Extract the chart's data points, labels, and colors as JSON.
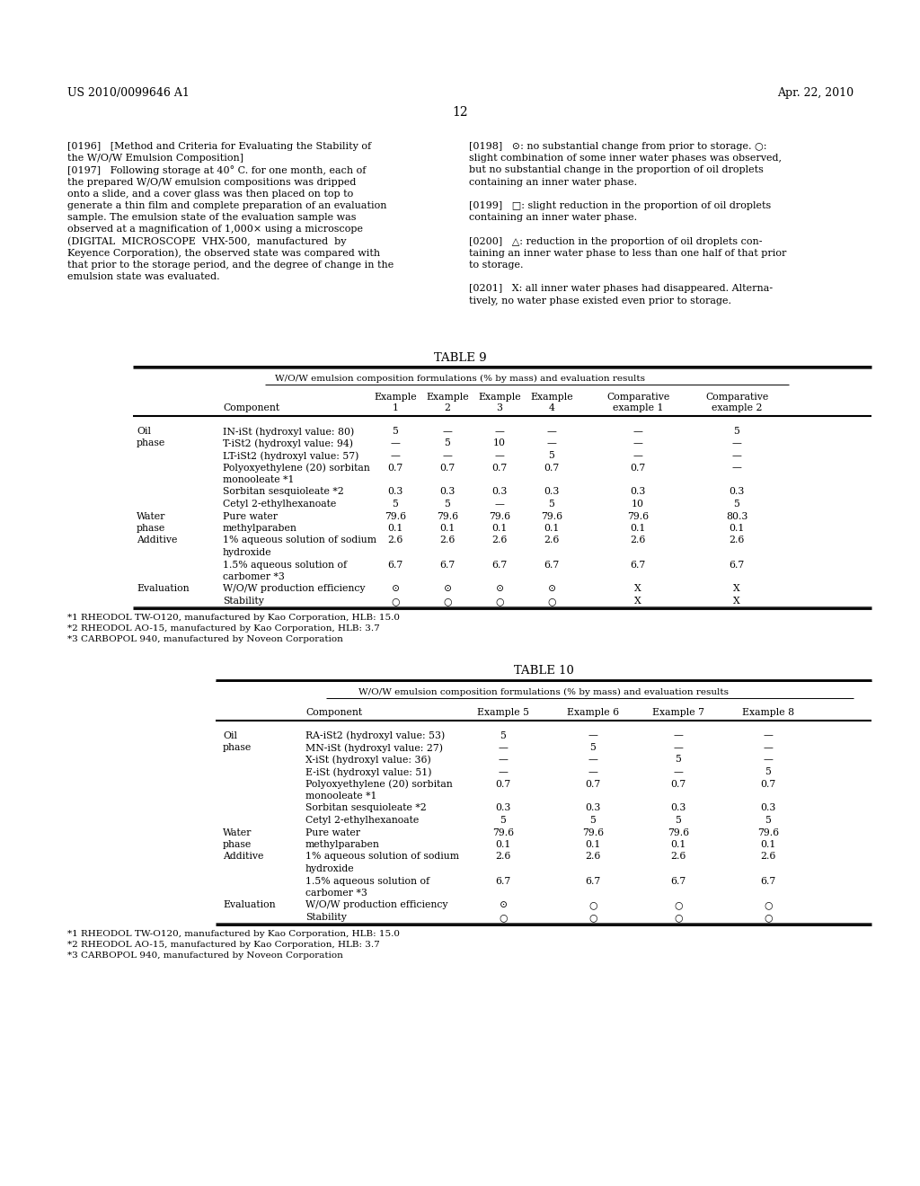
{
  "bg_color": "#ffffff",
  "header_left": "US 2010/0099646 A1",
  "header_right": "Apr. 22, 2010",
  "page_number": "12",
  "left_col_lines": [
    "[0196]   [Method and Criteria for Evaluating the Stability of",
    "the W/O/W Emulsion Composition]",
    "[0197]   Following storage at 40° C. for one month, each of",
    "the prepared W/O/W emulsion compositions was dripped",
    "onto a slide, and a cover glass was then placed on top to",
    "generate a thin film and complete preparation of an evaluation",
    "sample. The emulsion state of the evaluation sample was",
    "observed at a magnification of 1,000× using a microscope",
    "(DIGITAL  MICROSCOPE  VHX-500,  manufactured  by",
    "Keyence Corporation), the observed state was compared with",
    "that prior to the storage period, and the degree of change in the",
    "emulsion state was evaluated."
  ],
  "right_col_lines": [
    "[0198]   ⊙: no substantial change from prior to storage. ○:",
    "slight combination of some inner water phases was observed,",
    "but no substantial change in the proportion of oil droplets",
    "containing an inner water phase.",
    "",
    "[0199]   □: slight reduction in the proportion of oil droplets",
    "containing an inner water phase.",
    "",
    "[0200]   △: reduction in the proportion of oil droplets con-",
    "taining an inner water phase to less than one half of that prior",
    "to storage.",
    "",
    "[0201]   X: all inner water phases had disappeared. Alterna-",
    "tively, no water phase existed even prior to storage."
  ],
  "table9_title": "TABLE 9",
  "table9_subtitle": "W/O/W emulsion composition formulations (% by mass) and evaluation results",
  "table9_header1": [
    "",
    "",
    "Example",
    "Example",
    "Example",
    "Example",
    "Comparative",
    "Comparative"
  ],
  "table9_header2": [
    "",
    "Component",
    "1",
    "2",
    "3",
    "4",
    "example 1",
    "example 2"
  ],
  "table9_rows": [
    [
      "Oil",
      "IN-iSt (hydroxyl value: 80)",
      "5",
      "—",
      "—",
      "—",
      "—",
      "5"
    ],
    [
      "phase",
      "T-iSt2 (hydroxyl value: 94)",
      "—",
      "5",
      "10",
      "—",
      "—",
      "—"
    ],
    [
      "",
      "LT-iSt2 (hydroxyl value: 57)",
      "—",
      "—",
      "—",
      "5",
      "—",
      "—"
    ],
    [
      "",
      "Polyoxyethylene (20) sorbitan",
      "0.7",
      "0.7",
      "0.7",
      "0.7",
      "0.7",
      "—"
    ],
    [
      "",
      "monooleate *1",
      "",
      "",
      "",
      "",
      "",
      ""
    ],
    [
      "",
      "Sorbitan sesquioleate *2",
      "0.3",
      "0.3",
      "0.3",
      "0.3",
      "0.3",
      "0.3"
    ],
    [
      "",
      "Cetyl 2-ethylhexanoate",
      "5",
      "5",
      "—",
      "5",
      "10",
      "5"
    ],
    [
      "Water",
      "Pure water",
      "79.6",
      "79.6",
      "79.6",
      "79.6",
      "79.6",
      "80.3"
    ],
    [
      "phase",
      "methylparaben",
      "0.1",
      "0.1",
      "0.1",
      "0.1",
      "0.1",
      "0.1"
    ],
    [
      "Additive",
      "1% aqueous solution of sodium",
      "2.6",
      "2.6",
      "2.6",
      "2.6",
      "2.6",
      "2.6"
    ],
    [
      "",
      "hydroxide",
      "",
      "",
      "",
      "",
      "",
      ""
    ],
    [
      "",
      "1.5% aqueous solution of",
      "6.7",
      "6.7",
      "6.7",
      "6.7",
      "6.7",
      "6.7"
    ],
    [
      "",
      "carbomer *3",
      "",
      "",
      "",
      "",
      "",
      ""
    ],
    [
      "Evaluation",
      "W/O/W production efficiency",
      "⊙",
      "⊙",
      "⊙",
      "⊙",
      "X",
      "X"
    ],
    [
      "",
      "Stability",
      "○",
      "○",
      "○",
      "○",
      "X",
      "X"
    ]
  ],
  "table9_footnotes": [
    "*1 RHEODOL TW-O120, manufactured by Kao Corporation, HLB: 15.0",
    "*2 RHEODOL AO-15, manufactured by Kao Corporation, HLB: 3.7",
    "*3 CARBOPOL 940, manufactured by Noveon Corporation"
  ],
  "table10_title": "TABLE 10",
  "table10_subtitle": "W/O/W emulsion composition formulations (% by mass) and evaluation results",
  "table10_header": [
    "",
    "Component",
    "Example 5",
    "Example 6",
    "Example 7",
    "Example 8"
  ],
  "table10_rows": [
    [
      "Oil",
      "RA-iSt2 (hydroxyl value: 53)",
      "5",
      "—",
      "—",
      "—"
    ],
    [
      "phase",
      "MN-iSt (hydroxyl value: 27)",
      "—",
      "5",
      "—",
      "—"
    ],
    [
      "",
      "X-iSt (hydroxyl value: 36)",
      "—",
      "—",
      "5",
      "—"
    ],
    [
      "",
      "E-iSt (hydroxyl value: 51)",
      "—",
      "—",
      "—",
      "5"
    ],
    [
      "",
      "Polyoxyethylene (20) sorbitan",
      "0.7",
      "0.7",
      "0.7",
      "0.7"
    ],
    [
      "",
      "monooleate *1",
      "",
      "",
      "",
      ""
    ],
    [
      "",
      "Sorbitan sesquioleate *2",
      "0.3",
      "0.3",
      "0.3",
      "0.3"
    ],
    [
      "",
      "Cetyl 2-ethylhexanoate",
      "5",
      "5",
      "5",
      "5"
    ],
    [
      "Water",
      "Pure water",
      "79.6",
      "79.6",
      "79.6",
      "79.6"
    ],
    [
      "phase",
      "methylparaben",
      "0.1",
      "0.1",
      "0.1",
      "0.1"
    ],
    [
      "Additive",
      "1% aqueous solution of sodium",
      "2.6",
      "2.6",
      "2.6",
      "2.6"
    ],
    [
      "",
      "hydroxide",
      "",
      "",
      "",
      ""
    ],
    [
      "",
      "1.5% aqueous solution of",
      "6.7",
      "6.7",
      "6.7",
      "6.7"
    ],
    [
      "",
      "carbomer *3",
      "",
      "",
      "",
      ""
    ],
    [
      "Evaluation",
      "W/O/W production efficiency",
      "⊙",
      "○",
      "○",
      "○"
    ],
    [
      "",
      "Stability",
      "○",
      "○",
      "○",
      "○"
    ]
  ],
  "table10_footnotes": [
    "*1 RHEODOL TW-O120, manufactured by Kao Corporation, HLB: 15.0",
    "*2 RHEODOL AO-15, manufactured by Kao Corporation, HLB: 3.7",
    "*3 CARBOPOL 940, manufactured by Noveon Corporation"
  ]
}
